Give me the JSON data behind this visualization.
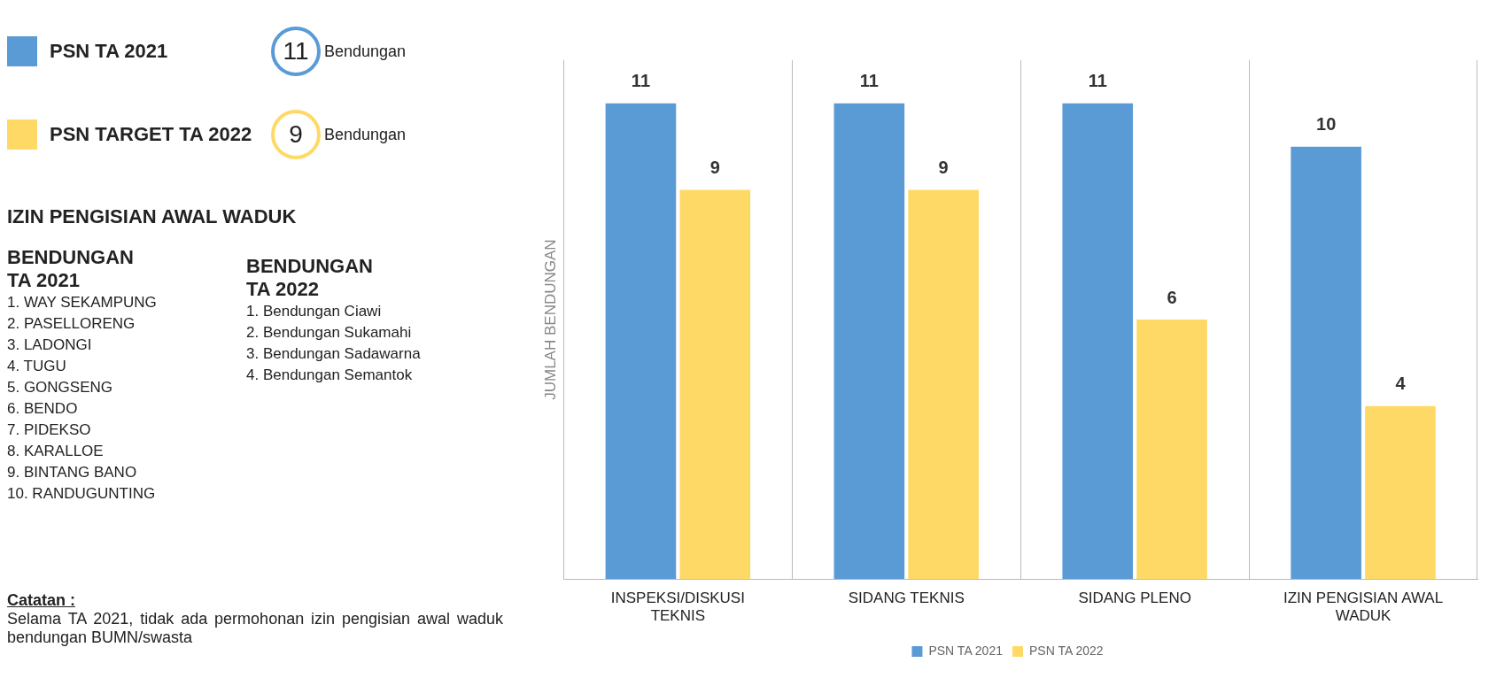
{
  "chart_data": [
    {
      "type": "other",
      "categories": [
        "PSN TA 2021",
        "PSN TARGET TA 2022"
      ],
      "values": [
        11,
        9
      ],
      "colors": [
        "#5b9bd5",
        "#ffd966"
      ],
      "data_labels": true,
      "annotations": [
        "Bendungan",
        "Bendungan",
        "IZIN PENGISIAN AWAL WADUK",
        "BENDUNGAN TA 2021",
        "1. WAY SEKAMPUNG",
        "2. PASELLORENG",
        "3. LADONGI",
        "4. TUGU",
        "5. GONGSENG",
        "6. BENDO",
        "7. PIDEKSO",
        "8. KARALLOE",
        "9. BINTANG BANO",
        "10. RANDUGUNTING",
        "BENDUNGAN TA 2022",
        "1. Bendungan Ciawi",
        "2. Bendungan Sukamahi",
        "3. Bendungan Sadawarna",
        "4. Bendungan Semantok",
        "Catatan :",
        "Selama TA 2021, tidak ada permohonan izin pengisian awal waduk bendungan BUMN/swasta"
      ]
    },
    {
      "type": "bar",
      "categories": [
        "INSPEKSI/DISKUSI TEKNIS",
        "SIDANG TEKNIS",
        "SIDANG PLENO",
        "IZIN PENGISIAN AWAL WADUK"
      ],
      "ylabel": "JUMLAH BENDUNGAN",
      "series": [
        {
          "name": "PSN TA 2021",
          "color": "#5b9bd5",
          "values": [
            11,
            11,
            11,
            10
          ]
        },
        {
          "name": "PSN TA 2022",
          "color": "#ffd966",
          "values": [
            9,
            9,
            6,
            4
          ]
        }
      ],
      "data_labels": true,
      "grid": "x",
      "legend": "bottom"
    }
  ]
}
